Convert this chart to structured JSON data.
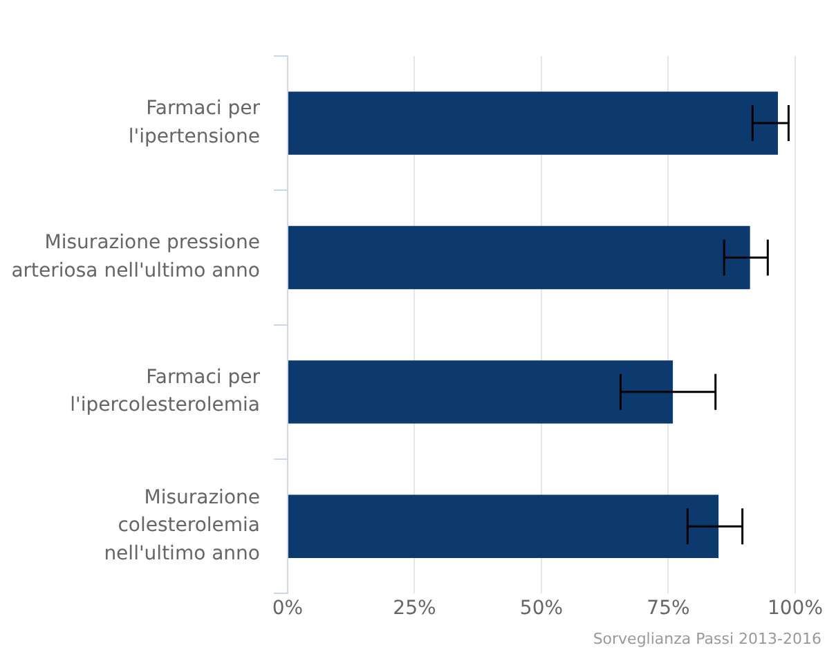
{
  "chart_data": {
    "type": "bar",
    "orientation": "horizontal",
    "categories": [
      "Farmaci per l'ipertensione",
      "Misurazione pressione arteriosa nell'ultimo anno",
      "Farmaci per l'ipercolesterolemia",
      "Misurazione colesterolemia nell'ultimo anno"
    ],
    "values": [
      96.6,
      91.1,
      75.9,
      84.9
    ],
    "errors": [
      [
        91.6,
        98.7
      ],
      [
        86.0,
        94.6
      ],
      [
        65.6,
        84.3
      ],
      [
        78.8,
        89.6
      ]
    ],
    "color": "#0d3a6e",
    "xlim": [
      0,
      100
    ],
    "xticks": [
      {
        "value": 0,
        "label": "0%"
      },
      {
        "value": 25,
        "label": "25%"
      },
      {
        "value": 50,
        "label": "50%"
      },
      {
        "value": 75,
        "label": "75%"
      },
      {
        "value": 100,
        "label": "100%"
      }
    ],
    "grid": "x",
    "legend": false,
    "annotations": [
      "Sorveglianza Passi 2013-2016"
    ]
  }
}
